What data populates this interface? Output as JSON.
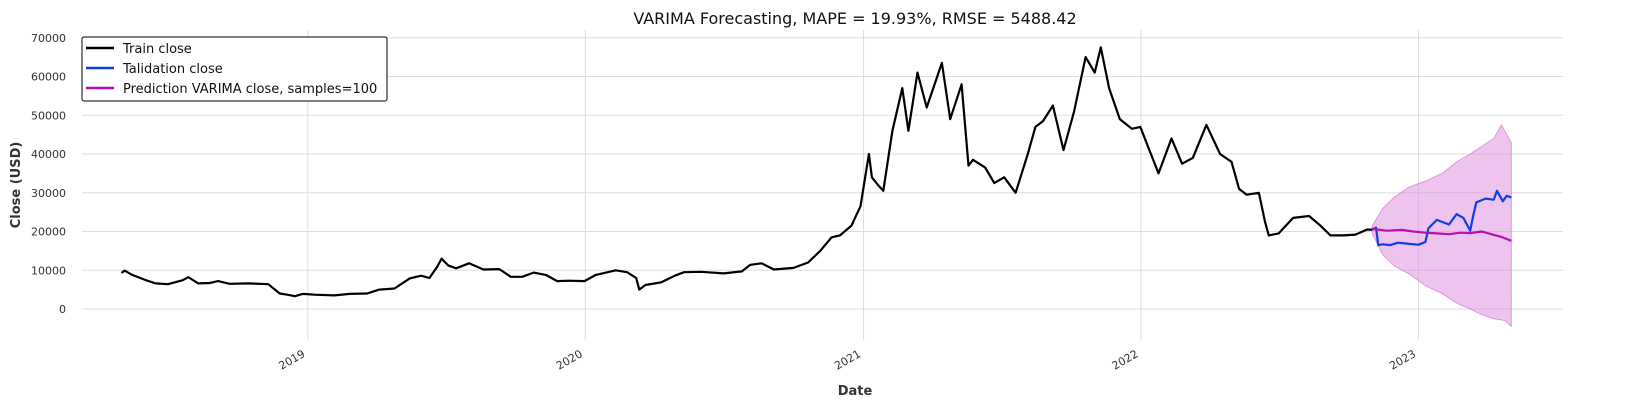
{
  "chart_data": {
    "type": "line",
    "title": "VARIMA Forecasting, MAPE = 19.93%, RMSE = 5488.42",
    "xlabel": "Date",
    "ylabel": "Close (USD)",
    "xlim": [
      "2018-03-10",
      "2023-07-10"
    ],
    "ylim": [
      -8000,
      72000
    ],
    "y_ticks": [
      0,
      10000,
      20000,
      30000,
      40000,
      50000,
      60000,
      70000
    ],
    "x_ticks": [
      {
        "date": "2019-01-01",
        "label": "2019"
      },
      {
        "date": "2020-01-01",
        "label": "2020"
      },
      {
        "date": "2021-01-01",
        "label": "2021"
      },
      {
        "date": "2022-01-01",
        "label": "2022"
      },
      {
        "date": "2023-01-01",
        "label": "2023"
      }
    ],
    "grid": true,
    "legend_position": "top-left",
    "series": [
      {
        "name": "Train close",
        "color": "#000000",
        "points": [
          [
            "2018-05-01",
            9300
          ],
          [
            "2018-05-05",
            9900
          ],
          [
            "2018-05-15",
            8800
          ],
          [
            "2018-06-01",
            7500
          ],
          [
            "2018-06-15",
            6600
          ],
          [
            "2018-07-01",
            6400
          ],
          [
            "2018-07-20",
            7400
          ],
          [
            "2018-07-28",
            8200
          ],
          [
            "2018-08-10",
            6600
          ],
          [
            "2018-08-25",
            6700
          ],
          [
            "2018-09-05",
            7200
          ],
          [
            "2018-09-20",
            6500
          ],
          [
            "2018-10-15",
            6600
          ],
          [
            "2018-11-10",
            6400
          ],
          [
            "2018-11-20",
            4800
          ],
          [
            "2018-11-25",
            4000
          ],
          [
            "2018-12-05",
            3700
          ],
          [
            "2018-12-15",
            3300
          ],
          [
            "2018-12-25",
            3900
          ],
          [
            "2019-01-10",
            3700
          ],
          [
            "2019-02-05",
            3500
          ],
          [
            "2019-02-25",
            3900
          ],
          [
            "2019-03-20",
            4000
          ],
          [
            "2019-04-05",
            5000
          ],
          [
            "2019-04-25",
            5300
          ],
          [
            "2019-05-15",
            7900
          ],
          [
            "2019-05-30",
            8600
          ],
          [
            "2019-06-10",
            8000
          ],
          [
            "2019-06-20",
            10800
          ],
          [
            "2019-06-26",
            13000
          ],
          [
            "2019-07-05",
            11200
          ],
          [
            "2019-07-15",
            10500
          ],
          [
            "2019-08-01",
            11800
          ],
          [
            "2019-08-20",
            10200
          ],
          [
            "2019-09-10",
            10300
          ],
          [
            "2019-09-25",
            8300
          ],
          [
            "2019-10-10",
            8300
          ],
          [
            "2019-10-25",
            9400
          ],
          [
            "2019-11-10",
            8800
          ],
          [
            "2019-11-25",
            7200
          ],
          [
            "2019-12-10",
            7300
          ],
          [
            "2019-12-31",
            7200
          ],
          [
            "2020-01-15",
            8800
          ],
          [
            "2020-02-10",
            10000
          ],
          [
            "2020-02-25",
            9500
          ],
          [
            "2020-03-08",
            8000
          ],
          [
            "2020-03-12",
            5000
          ],
          [
            "2020-03-20",
            6200
          ],
          [
            "2020-04-10",
            6900
          ],
          [
            "2020-04-29",
            8700
          ],
          [
            "2020-05-10",
            9500
          ],
          [
            "2020-06-01",
            9600
          ],
          [
            "2020-07-01",
            9200
          ],
          [
            "2020-07-25",
            9700
          ],
          [
            "2020-08-05",
            11400
          ],
          [
            "2020-08-20",
            11800
          ],
          [
            "2020-09-05",
            10200
          ],
          [
            "2020-10-01",
            10600
          ],
          [
            "2020-10-20",
            12000
          ],
          [
            "2020-11-05",
            15000
          ],
          [
            "2020-11-20",
            18500
          ],
          [
            "2020-12-01",
            19000
          ],
          [
            "2020-12-16",
            21500
          ],
          [
            "2020-12-28",
            26500
          ],
          [
            "2021-01-08",
            40000
          ],
          [
            "2021-01-12",
            34000
          ],
          [
            "2021-01-20",
            32000
          ],
          [
            "2021-01-27",
            30500
          ],
          [
            "2021-02-08",
            46000
          ],
          [
            "2021-02-21",
            57000
          ],
          [
            "2021-03-01",
            46000
          ],
          [
            "2021-03-13",
            61000
          ],
          [
            "2021-03-25",
            52000
          ],
          [
            "2021-04-14",
            63500
          ],
          [
            "2021-04-25",
            49000
          ],
          [
            "2021-05-10",
            58000
          ],
          [
            "2021-05-19",
            37000
          ],
          [
            "2021-05-25",
            38500
          ],
          [
            "2021-06-10",
            36500
          ],
          [
            "2021-06-22",
            32500
          ],
          [
            "2021-07-05",
            34000
          ],
          [
            "2021-07-20",
            30000
          ],
          [
            "2021-08-05",
            40000
          ],
          [
            "2021-08-15",
            47000
          ],
          [
            "2021-08-25",
            48500
          ],
          [
            "2021-09-07",
            52500
          ],
          [
            "2021-09-21",
            41000
          ],
          [
            "2021-10-05",
            51000
          ],
          [
            "2021-10-20",
            65000
          ],
          [
            "2021-11-01",
            61000
          ],
          [
            "2021-11-09",
            67500
          ],
          [
            "2021-11-20",
            57000
          ],
          [
            "2021-12-04",
            49000
          ],
          [
            "2021-12-20",
            46500
          ],
          [
            "2021-12-31",
            47000
          ],
          [
            "2022-01-10",
            42000
          ],
          [
            "2022-01-24",
            35000
          ],
          [
            "2022-02-10",
            44000
          ],
          [
            "2022-02-24",
            37500
          ],
          [
            "2022-03-10",
            39000
          ],
          [
            "2022-03-28",
            47500
          ],
          [
            "2022-04-15",
            40000
          ],
          [
            "2022-04-30",
            38000
          ],
          [
            "2022-05-10",
            31000
          ],
          [
            "2022-05-20",
            29500
          ],
          [
            "2022-06-05",
            30000
          ],
          [
            "2022-06-13",
            22500
          ],
          [
            "2022-06-18",
            19000
          ],
          [
            "2022-07-01",
            19500
          ],
          [
            "2022-07-20",
            23500
          ],
          [
            "2022-08-10",
            24000
          ],
          [
            "2022-08-25",
            21500
          ],
          [
            "2022-09-07",
            19000
          ],
          [
            "2022-09-25",
            19000
          ],
          [
            "2022-10-10",
            19200
          ],
          [
            "2022-10-25",
            20500
          ],
          [
            "2022-11-01",
            20500
          ]
        ]
      },
      {
        "name": "Talidation close",
        "color": "#0a3ee8",
        "points": [
          [
            "2022-11-01",
            20500
          ],
          [
            "2022-11-06",
            21000
          ],
          [
            "2022-11-09",
            16500
          ],
          [
            "2022-11-15",
            16700
          ],
          [
            "2022-11-25",
            16500
          ],
          [
            "2022-12-05",
            17100
          ],
          [
            "2022-12-20",
            16800
          ],
          [
            "2023-01-01",
            16600
          ],
          [
            "2023-01-10",
            17300
          ],
          [
            "2023-01-14",
            20800
          ],
          [
            "2023-01-25",
            23000
          ],
          [
            "2023-02-10",
            21800
          ],
          [
            "2023-02-20",
            24500
          ],
          [
            "2023-03-01",
            23500
          ],
          [
            "2023-03-10",
            20200
          ],
          [
            "2023-03-14",
            24200
          ],
          [
            "2023-03-18",
            27500
          ],
          [
            "2023-03-30",
            28500
          ],
          [
            "2023-04-10",
            28200
          ],
          [
            "2023-04-14",
            30500
          ],
          [
            "2023-04-22",
            27800
          ],
          [
            "2023-04-27",
            29200
          ],
          [
            "2023-05-03",
            28800
          ]
        ]
      },
      {
        "name": "Prediction VARIMA close, samples=100",
        "color": "#b50fb5",
        "points": [
          [
            "2022-11-01",
            20700
          ],
          [
            "2022-11-20",
            20200
          ],
          [
            "2022-12-10",
            20400
          ],
          [
            "2022-12-25",
            20000
          ],
          [
            "2023-01-10",
            19700
          ],
          [
            "2023-01-25",
            19500
          ],
          [
            "2023-02-10",
            19300
          ],
          [
            "2023-02-25",
            19700
          ],
          [
            "2023-03-10",
            19600
          ],
          [
            "2023-03-25",
            20000
          ],
          [
            "2023-04-05",
            19400
          ],
          [
            "2023-04-20",
            18600
          ],
          [
            "2023-05-03",
            17600
          ]
        ]
      }
    ],
    "confidence_band": {
      "series": "Prediction VARIMA close, samples=100",
      "color": "#dd88dd",
      "upper": [
        [
          "2022-11-01",
          21500
        ],
        [
          "2022-11-15",
          26000
        ],
        [
          "2022-12-01",
          29000
        ],
        [
          "2022-12-20",
          31500
        ],
        [
          "2023-01-10",
          33000
        ],
        [
          "2023-02-01",
          35000
        ],
        [
          "2023-02-20",
          38000
        ],
        [
          "2023-03-10",
          40000
        ],
        [
          "2023-03-25",
          42000
        ],
        [
          "2023-04-10",
          44000
        ],
        [
          "2023-04-20",
          47500
        ],
        [
          "2023-05-03",
          43000
        ]
      ],
      "lower": [
        [
          "2022-11-01",
          19500
        ],
        [
          "2022-11-15",
          14000
        ],
        [
          "2022-12-01",
          11000
        ],
        [
          "2022-12-20",
          9000
        ],
        [
          "2023-01-10",
          6000
        ],
        [
          "2023-02-01",
          4000
        ],
        [
          "2023-02-20",
          1500
        ],
        [
          "2023-03-10",
          0
        ],
        [
          "2023-03-25",
          -1500
        ],
        [
          "2023-04-10",
          -2500
        ],
        [
          "2023-04-25",
          -3000
        ],
        [
          "2023-05-03",
          -4500
        ]
      ]
    }
  }
}
